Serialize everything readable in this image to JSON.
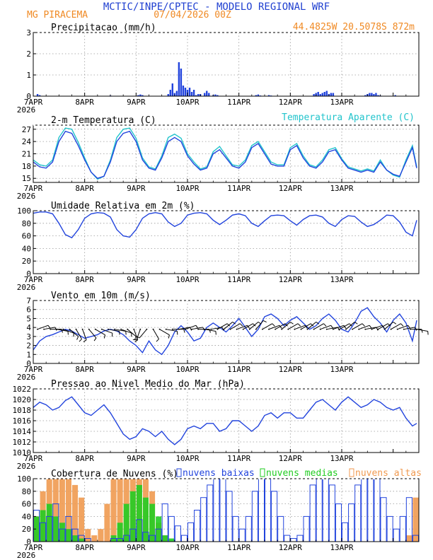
{
  "header": {
    "title": "MCTIC/INPE/CPTEC - MODELO REGIONAL WRF",
    "station": "MG PIRACEMA",
    "run": "07/04/2026 00Z",
    "coords": "44.4825W 20.5078S 872m"
  },
  "colors": {
    "title": "#1f3fd0",
    "header_orange": "#f08a24",
    "line_blue": "#2244dd",
    "line_cyan": "#22c4cc",
    "bar_blue": "#2244dd",
    "cloud_low": "#2244dd",
    "cloud_mid": "#22cc22",
    "cloud_high": "#f09a50",
    "grid": "#999999"
  },
  "x_ticks": [
    "7APR",
    "8APR",
    "9APR",
    "10APR",
    "11APR",
    "12APR",
    "13APR"
  ],
  "x_year": "2026",
  "chart_data": [
    {
      "id": "precip",
      "type": "bar",
      "title": "Precipitacao (mm/h)",
      "ylim": [
        0,
        3
      ],
      "yticks": [
        0,
        1,
        2,
        3
      ],
      "x_unit": "hours since 7APR 00Z",
      "hours": [
        2,
        3,
        36,
        49,
        50,
        51,
        63,
        64,
        65,
        66,
        67,
        68,
        69,
        70,
        71,
        72,
        73,
        74,
        75,
        76,
        77,
        78,
        80,
        81,
        82,
        84,
        85,
        86,
        104,
        105,
        106,
        110,
        111,
        131,
        132,
        133,
        134,
        135,
        136,
        137,
        138,
        139,
        140,
        155,
        156,
        157,
        158,
        159,
        160,
        161,
        162,
        169
      ],
      "values": [
        0.1,
        0.05,
        0.03,
        0.05,
        0.08,
        0.05,
        0.1,
        0.3,
        0.6,
        0.15,
        0.25,
        1.6,
        1.3,
        0.5,
        0.4,
        0.3,
        0.4,
        0.2,
        0.3,
        0.05,
        0.1,
        0.1,
        0.15,
        0.25,
        0.15,
        0.05,
        0.08,
        0.05,
        0.05,
        0.08,
        0.03,
        0.05,
        0.03,
        0.1,
        0.15,
        0.2,
        0.1,
        0.15,
        0.2,
        0.25,
        0.1,
        0.15,
        0.15,
        0.05,
        0.1,
        0.15,
        0.15,
        0.1,
        0.15,
        0.05,
        0.03,
        0.05
      ]
    },
    {
      "id": "temp",
      "type": "line",
      "title": "2-m Temperatura (C)",
      "legend": "Temperatura Aparente (C)",
      "ylim": [
        14,
        28
      ],
      "yticks": [
        15,
        18,
        21,
        24,
        27
      ],
      "x_unit": "hours since 7APR 00Z",
      "series": [
        {
          "name": "2-m Temperatura (C)",
          "x": [
            0,
            3,
            6,
            9,
            12,
            15,
            18,
            21,
            24,
            27,
            30,
            33,
            36,
            39,
            42,
            45,
            48,
            51,
            54,
            57,
            60,
            63,
            66,
            69,
            72,
            75,
            78,
            81,
            84,
            87,
            90,
            93,
            96,
            99,
            102,
            105,
            108,
            111,
            114,
            117,
            120,
            123,
            126,
            129,
            132,
            135,
            138,
            141,
            144,
            147,
            150,
            153,
            156,
            159,
            162,
            165,
            168,
            171,
            174,
            177,
            179
          ],
          "values": [
            19,
            17.8,
            17.5,
            19,
            24,
            26.5,
            26,
            23,
            19.5,
            16.5,
            15,
            15.5,
            19,
            24,
            26,
            26.5,
            24,
            19.5,
            17.5,
            17,
            20,
            24,
            25,
            24,
            20.5,
            18.5,
            17,
            17.5,
            21,
            22,
            20,
            18,
            17.5,
            19,
            22.5,
            23.5,
            21,
            18.5,
            18,
            18,
            22,
            23,
            20,
            18,
            17.5,
            19,
            21.5,
            22,
            19.5,
            17.5,
            17,
            16.5,
            17,
            16.5,
            19,
            17,
            16,
            15.5,
            19,
            22.5,
            17.5
          ]
        },
        {
          "name": "Temperatura Aparente (C)",
          "x": [
            0,
            3,
            6,
            9,
            12,
            15,
            18,
            21,
            24,
            27,
            30,
            33,
            36,
            39,
            42,
            45,
            48,
            51,
            54,
            57,
            60,
            63,
            66,
            69,
            72,
            75,
            78,
            81,
            84,
            87,
            90,
            93,
            96,
            99,
            102,
            105,
            108,
            111,
            114,
            117,
            120,
            123,
            126,
            129,
            132,
            135,
            138,
            141,
            144,
            147,
            150,
            153,
            156,
            159,
            162,
            165,
            168,
            171,
            174,
            177,
            179
          ],
          "values": [
            19.5,
            18.3,
            18,
            19.5,
            25,
            27.3,
            27,
            23.8,
            20,
            16.5,
            14.8,
            15.5,
            19.5,
            25,
            27,
            27.3,
            24.8,
            20,
            17.8,
            17.3,
            20.5,
            25,
            25.8,
            24.8,
            21,
            19,
            17.3,
            17.8,
            21.5,
            22.8,
            20.5,
            18.3,
            18,
            19.5,
            23,
            24,
            21.5,
            19,
            18.3,
            18.3,
            22.5,
            23.5,
            20.5,
            18.3,
            17.8,
            19.5,
            22,
            22.5,
            19.8,
            17.8,
            17.3,
            16.8,
            17.3,
            16.8,
            19.5,
            17,
            15.8,
            15.3,
            19.5,
            23,
            17.8
          ]
        }
      ]
    },
    {
      "id": "rh",
      "type": "line",
      "title": "Umidade Relativa em 2m (%)",
      "ylim": [
        0,
        100
      ],
      "yticks": [
        0,
        20,
        40,
        60,
        80,
        100
      ],
      "x_unit": "hours since 7APR 00Z",
      "series": [
        {
          "name": "Umidade Relativa em 2m (%)",
          "x": [
            0,
            3,
            6,
            9,
            12,
            15,
            18,
            21,
            24,
            27,
            30,
            33,
            36,
            39,
            42,
            45,
            48,
            51,
            54,
            57,
            60,
            63,
            66,
            69,
            72,
            75,
            78,
            81,
            84,
            87,
            90,
            93,
            96,
            99,
            102,
            105,
            108,
            111,
            114,
            117,
            120,
            123,
            126,
            129,
            132,
            135,
            138,
            141,
            144,
            147,
            150,
            153,
            156,
            159,
            162,
            165,
            168,
            171,
            174,
            177,
            179
          ],
          "values": [
            96,
            98,
            98,
            95,
            80,
            62,
            57,
            70,
            88,
            95,
            97,
            96,
            90,
            70,
            60,
            58,
            70,
            88,
            95,
            97,
            95,
            82,
            75,
            80,
            93,
            96,
            97,
            95,
            85,
            78,
            85,
            93,
            95,
            92,
            80,
            75,
            84,
            92,
            93,
            92,
            84,
            77,
            86,
            92,
            93,
            90,
            80,
            75,
            86,
            92,
            91,
            82,
            75,
            78,
            85,
            93,
            92,
            82,
            66,
            60,
            85
          ]
        }
      ]
    },
    {
      "id": "wind",
      "type": "line",
      "title": "Vento em 10m (m/s)",
      "ylim": [
        0,
        7
      ],
      "yticks": [
        0,
        1,
        2,
        3,
        4,
        5,
        6,
        7
      ],
      "x_unit": "hours since 7APR 00Z",
      "series": [
        {
          "name": "Vento em 10m (m/s)",
          "x": [
            0,
            3,
            6,
            9,
            12,
            15,
            18,
            21,
            24,
            27,
            30,
            33,
            36,
            39,
            42,
            45,
            48,
            51,
            54,
            57,
            60,
            63,
            66,
            69,
            72,
            75,
            78,
            81,
            84,
            87,
            90,
            93,
            96,
            99,
            102,
            105,
            108,
            111,
            114,
            117,
            120,
            123,
            126,
            129,
            132,
            135,
            138,
            141,
            144,
            147,
            150,
            153,
            156,
            159,
            162,
            165,
            168,
            171,
            174,
            177,
            179
          ],
          "values": [
            1.5,
            2.5,
            3,
            3.2,
            3.5,
            3.8,
            3.6,
            3.2,
            2.8,
            3,
            3.2,
            3.6,
            3.8,
            3.6,
            3.2,
            2.5,
            2,
            1.2,
            2.5,
            1.5,
            1,
            2,
            3.5,
            4.2,
            3.5,
            2.5,
            2.8,
            4,
            4.5,
            4,
            3.5,
            4.2,
            5,
            4,
            3,
            3.8,
            5.2,
            5.5,
            5,
            4.2,
            4.8,
            5.2,
            4.5,
            3.8,
            4.2,
            5,
            5.5,
            4.8,
            3.8,
            3.5,
            4.5,
            5.8,
            6.2,
            5.2,
            4.5,
            3.5,
            4.8,
            5.5,
            4.5,
            2.5,
            4.8
          ]
        }
      ],
      "barb_hours": [
        0,
        3,
        6,
        9,
        12,
        15,
        18,
        21,
        24,
        27,
        30,
        33,
        36,
        39,
        42,
        45,
        48,
        51,
        54,
        57,
        60,
        63,
        66,
        69,
        72,
        75,
        78,
        81,
        84,
        87,
        90,
        93,
        96,
        99,
        102,
        105,
        108,
        111,
        114,
        117,
        120,
        123,
        126,
        129,
        132,
        135,
        138,
        141,
        144,
        147,
        150,
        153,
        156,
        159,
        162,
        165,
        168,
        171,
        174,
        177
      ],
      "barb_dir_deg": [
        70,
        80,
        90,
        100,
        110,
        130,
        150,
        160,
        140,
        120,
        110,
        100,
        100,
        110,
        130,
        160,
        200,
        220,
        150,
        120,
        100,
        90,
        80,
        70,
        80,
        90,
        100,
        80,
        60,
        50,
        60,
        70,
        60,
        50,
        40,
        60,
        70,
        60,
        50,
        60,
        70,
        60,
        50,
        60,
        70,
        80,
        70,
        60,
        50,
        60,
        70,
        80,
        70,
        60,
        50,
        60,
        70,
        80,
        90,
        100
      ]
    },
    {
      "id": "pres",
      "type": "line",
      "title": "Pressao ao Nivel Medio do Mar (hPa)",
      "ylim": [
        1010,
        1022
      ],
      "yticks": [
        1010,
        1012,
        1014,
        1016,
        1018,
        1020,
        1022
      ],
      "x_unit": "hours since 7APR 00Z",
      "series": [
        {
          "name": "Pressao ao Nivel Medio do Mar (hPa)",
          "x": [
            0,
            3,
            6,
            9,
            12,
            15,
            18,
            21,
            24,
            27,
            30,
            33,
            36,
            39,
            42,
            45,
            48,
            51,
            54,
            57,
            60,
            63,
            66,
            69,
            72,
            75,
            78,
            81,
            84,
            87,
            90,
            93,
            96,
            99,
            102,
            105,
            108,
            111,
            114,
            117,
            120,
            123,
            126,
            129,
            132,
            135,
            138,
            141,
            144,
            147,
            150,
            153,
            156,
            159,
            162,
            165,
            168,
            171,
            174,
            177,
            179
          ],
          "values": [
            1018.5,
            1019.5,
            1019,
            1018,
            1018.5,
            1019.8,
            1020.5,
            1019,
            1017.5,
            1017,
            1018,
            1019,
            1017.5,
            1015.5,
            1013.5,
            1012.5,
            1013,
            1014.5,
            1014,
            1013,
            1014,
            1012.5,
            1011.5,
            1012.5,
            1014.5,
            1015,
            1014.5,
            1015.5,
            1015.5,
            1014,
            1014.5,
            1016,
            1016,
            1015,
            1014,
            1015,
            1017,
            1017.5,
            1016.5,
            1017.5,
            1017.5,
            1016.5,
            1016.5,
            1018,
            1019.5,
            1020,
            1019,
            1018,
            1019.5,
            1020.5,
            1019.5,
            1018.5,
            1019,
            1020,
            1019.5,
            1018.5,
            1018,
            1018.5,
            1016.5,
            1015,
            1015.5
          ]
        }
      ]
    },
    {
      "id": "clouds",
      "type": "bar",
      "title": "Cobertura de Nuvens (%)",
      "ylim": [
        0,
        100
      ],
      "yticks": [
        0,
        20,
        40,
        60,
        80,
        100
      ],
      "x_unit": "hours since 7APR 00Z",
      "x_step": 3,
      "series": [
        {
          "name": "nuvens baixas",
          "values": [
            50,
            30,
            40,
            60,
            20,
            40,
            20,
            10,
            5,
            0,
            0,
            0,
            5,
            5,
            10,
            20,
            35,
            15,
            10,
            20,
            60,
            40,
            25,
            10,
            30,
            50,
            70,
            90,
            100,
            100,
            80,
            40,
            20,
            40,
            80,
            100,
            100,
            80,
            40,
            10,
            5,
            10,
            40,
            90,
            100,
            100,
            90,
            60,
            30,
            60,
            90,
            100,
            100,
            100,
            70,
            40,
            20,
            40,
            70,
            10
          ]
        },
        {
          "name": "nuvens medias",
          "values": [
            40,
            50,
            60,
            40,
            30,
            20,
            10,
            5,
            0,
            0,
            0,
            0,
            10,
            30,
            60,
            80,
            90,
            70,
            60,
            40,
            10,
            5,
            0,
            0,
            0,
            0,
            0,
            0,
            0,
            0,
            0,
            0,
            0,
            0,
            0,
            0,
            0,
            0,
            0,
            0,
            0,
            0,
            0,
            0,
            0,
            0,
            0,
            0,
            0,
            0,
            0,
            0,
            0,
            0,
            0,
            0,
            0,
            0,
            0,
            0
          ]
        },
        {
          "name": "nuvens altas",
          "values": [
            40,
            80,
            100,
            100,
            100,
            100,
            90,
            70,
            20,
            10,
            20,
            60,
            100,
            100,
            100,
            100,
            100,
            100,
            80,
            30,
            10,
            0,
            0,
            0,
            0,
            0,
            0,
            0,
            0,
            0,
            0,
            0,
            0,
            0,
            0,
            0,
            0,
            0,
            0,
            0,
            0,
            0,
            0,
            0,
            0,
            0,
            0,
            0,
            0,
            0,
            0,
            0,
            0,
            0,
            0,
            0,
            0,
            0,
            10,
            70
          ]
        }
      ]
    }
  ]
}
